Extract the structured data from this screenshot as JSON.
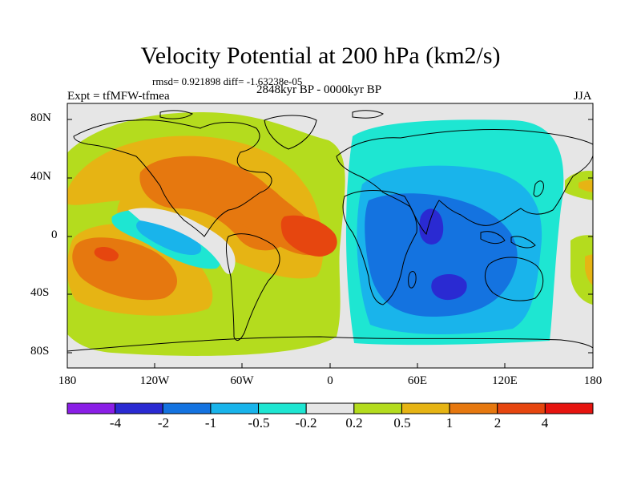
{
  "title": "Velocity Potential at 200 hPa (km2/s)",
  "stats": "rmsd= 0.921898 diff= -1.63238e-05",
  "experiment": "Expt = tfMFW-tfmea",
  "period": "2848kyr BP - 0000kyr BP",
  "season": "JJA",
  "lat_ticks": [
    "80N",
    "40N",
    "0",
    "40S",
    "80S"
  ],
  "lon_ticks": [
    "180",
    "120W",
    "60W",
    "0",
    "60E",
    "120E",
    "180"
  ],
  "colorbar": {
    "labels": [
      "-4",
      "-2",
      "-1",
      "-0.5",
      "-0.2",
      "0.2",
      "0.5",
      "1",
      "2",
      "4"
    ],
    "colors": [
      "#8a1ee6",
      "#2a2ad2",
      "#1473e0",
      "#19b4eb",
      "#1ee6d2",
      "#e6e6e6",
      "#b4dc1e",
      "#e6b414",
      "#e6780f",
      "#e6460f",
      "#e6140f"
    ]
  }
}
